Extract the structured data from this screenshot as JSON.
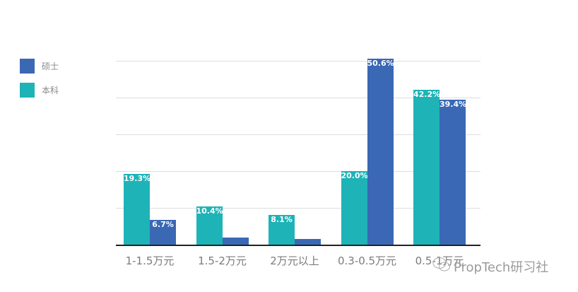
{
  "legend": [
    {
      "label": "硕士",
      "color": "#3a68b4"
    },
    {
      "label": "本科",
      "color": "#1eb3b7"
    }
  ],
  "watermark": "PropTech研习社",
  "chart_data": {
    "type": "bar",
    "title": "",
    "xlabel": "",
    "ylabel": "",
    "ylim": [
      0,
      50
    ],
    "grid": true,
    "legend_position": "left",
    "categories": [
      "1-1.5万元",
      "1.5-2万元",
      "2万元以上",
      "0.3-0.5万元",
      "0.5-1万元"
    ],
    "series": [
      {
        "name": "本科",
        "color": "#1eb3b7",
        "values": [
          19.3,
          10.4,
          8.1,
          20.0,
          42.2
        ],
        "labels": [
          "19.3%",
          "10.4%",
          "8.1%",
          "20.0%",
          "42.2%"
        ]
      },
      {
        "name": "硕士",
        "color": "#3a68b4",
        "values": [
          6.7,
          2.0,
          1.6,
          50.6,
          39.4
        ],
        "labels": [
          "6.7%",
          "",
          "",
          "50.6%",
          "39.4%"
        ]
      }
    ]
  }
}
